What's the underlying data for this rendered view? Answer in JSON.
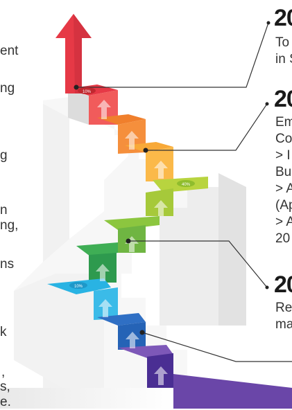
{
  "left_fragments": [
    "ent",
    "ng",
    "g",
    "n",
    "ng,",
    "ns",
    "k",
    ",",
    "s,",
    "e."
  ],
  "callouts": [
    {
      "year_fragment": "20",
      "lines": [
        "To",
        "in S"
      ]
    },
    {
      "year_fragment": "20",
      "lines": [
        "Em",
        "Co",
        "> I",
        "Bu",
        "> A",
        "(Ap",
        "> A",
        "20"
      ]
    },
    {
      "year_fragment": "20",
      "lines": [
        "Re",
        "ma"
      ]
    }
  ],
  "step_badges": [
    "10%",
    "40%",
    "10%"
  ],
  "colors": {
    "arrow_red": "#e63946",
    "orange": "#f07f2c",
    "amber": "#f8a938",
    "yellow_green": "#a6c93a",
    "green": "#6fb542",
    "dark_green": "#2e9a4e",
    "cyan": "#29b3e3",
    "blue": "#2f6fc4",
    "purple": "#6a46a8",
    "stair_face": "#f4f4f4",
    "stair_shadow": "#d9d9d9"
  }
}
